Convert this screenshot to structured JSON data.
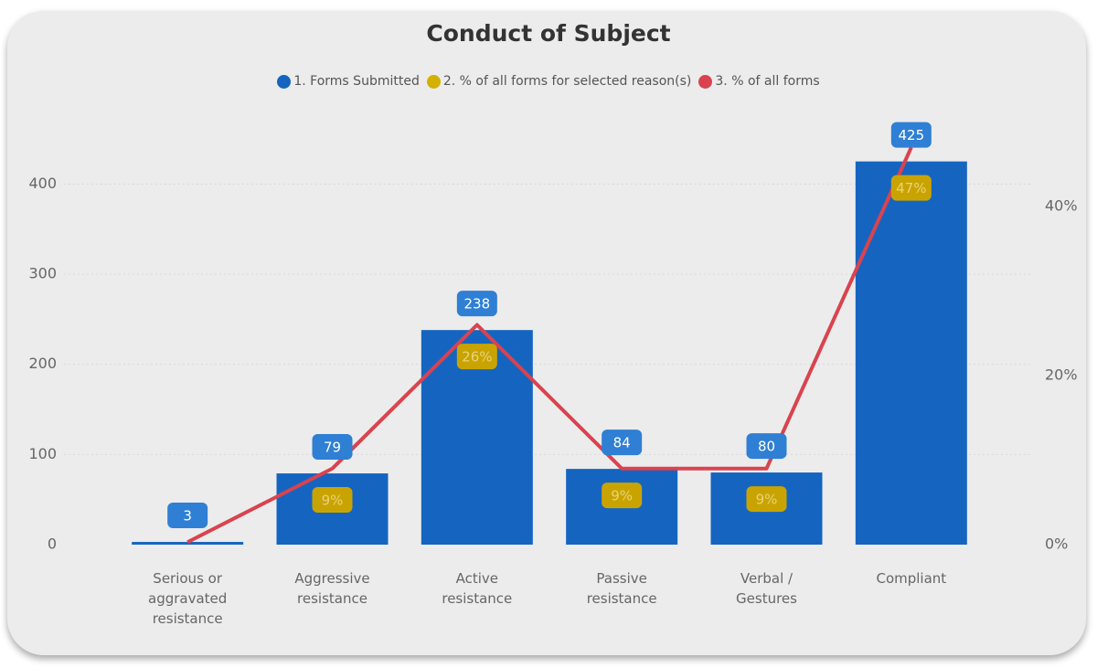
{
  "chart_data": {
    "type": "bar-line",
    "title": "Conduct of Subject",
    "categories": [
      "Serious or aggravated resistance",
      "Aggressive resistance",
      "Active resistance",
      "Passive resistance",
      "Verbal / Gestures",
      "Compliant"
    ],
    "series": [
      {
        "name": "1. Forms Submitted",
        "color": "#1565c0",
        "type": "bar",
        "values": [
          3,
          79,
          238,
          84,
          80,
          425
        ]
      },
      {
        "name": "2. % of all forms for selected reason(s)",
        "color": "#d4b000",
        "type": "label",
        "axis": "y2",
        "values": [
          null,
          9,
          26,
          9,
          9,
          47
        ],
        "value_labels": [
          null,
          "9%",
          "26%",
          "9%",
          "9%",
          "47%"
        ]
      },
      {
        "name": "3. % of all forms",
        "color": "#d9434f",
        "type": "line",
        "axis": "y2",
        "values": [
          0.3,
          9,
          26,
          9,
          9,
          47
        ]
      }
    ],
    "ylim": [
      0,
      450
    ],
    "yticks": [
      0,
      100,
      200,
      300,
      400
    ],
    "y2lim": [
      0,
      48
    ],
    "y2ticks": [
      {
        "value": 0,
        "label": "0%"
      },
      {
        "value": 20,
        "label": "20%"
      },
      {
        "value": 40,
        "label": "40%"
      }
    ],
    "grid": true
  }
}
